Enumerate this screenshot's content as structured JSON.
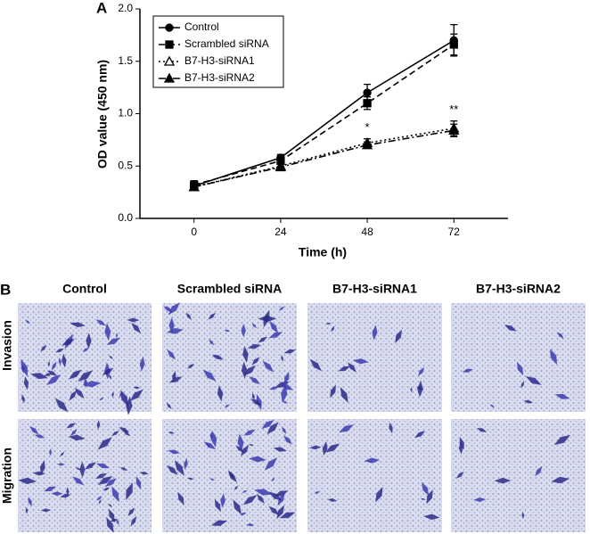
{
  "chart_data": {
    "type": "line",
    "panel_label": "A",
    "x": [
      0,
      24,
      48,
      72
    ],
    "xlim": [
      -15,
      87
    ],
    "xticks": [
      0,
      24,
      48,
      72
    ],
    "ylim": [
      0,
      2
    ],
    "yticks": [
      {
        "value": 0,
        "label": "0.0"
      },
      {
        "value": 0.5,
        "label": "0.5"
      },
      {
        "value": 1,
        "label": "1.0"
      },
      {
        "value": 1.5,
        "label": "1.5"
      },
      {
        "value": 2,
        "label": "2.0"
      }
    ],
    "xlabel": "Time (h)",
    "ylabel": "OD value (450 nm)",
    "legend": "upper left",
    "series": [
      {
        "name": "Control",
        "color": "#000000",
        "marker": "circle",
        "line_style": "solid",
        "values": [
          0.31,
          0.58,
          1.2,
          1.7
        ],
        "errors": [
          0.04,
          0.03,
          0.08,
          0.15
        ]
      },
      {
        "name": "Scrambled siRNA",
        "color": "#000000",
        "marker": "square",
        "line_style": "dashed",
        "values": [
          0.32,
          0.55,
          1.1,
          1.66
        ],
        "errors": [
          0.04,
          0.03,
          0.06,
          0.1
        ]
      },
      {
        "name": "B7-H3-siRNA1",
        "color": "#000000",
        "marker": "open-triangle",
        "line_style": "dotted",
        "values": [
          0.3,
          0.5,
          0.72,
          0.86
        ],
        "errors": [
          0.03,
          0.03,
          0.04,
          0.07
        ]
      },
      {
        "name": "B7-H3-siRNA2",
        "color": "#000000",
        "marker": "triangle",
        "line_style": "dashdot",
        "values": [
          0.3,
          0.49,
          0.7,
          0.84
        ],
        "errors": [
          0.03,
          0.03,
          0.03,
          0.06
        ]
      }
    ],
    "annotations": [
      {
        "text": "*",
        "x": 48
      },
      {
        "text": "**",
        "x": 72
      }
    ]
  },
  "micrographs": {
    "panel_label": "B",
    "columns": [
      "Control",
      "Scrambled siRNA",
      "B7-H3-siRNA1",
      "B7-H3-siRNA2"
    ],
    "rows": [
      "Invasion",
      "Migration"
    ]
  }
}
